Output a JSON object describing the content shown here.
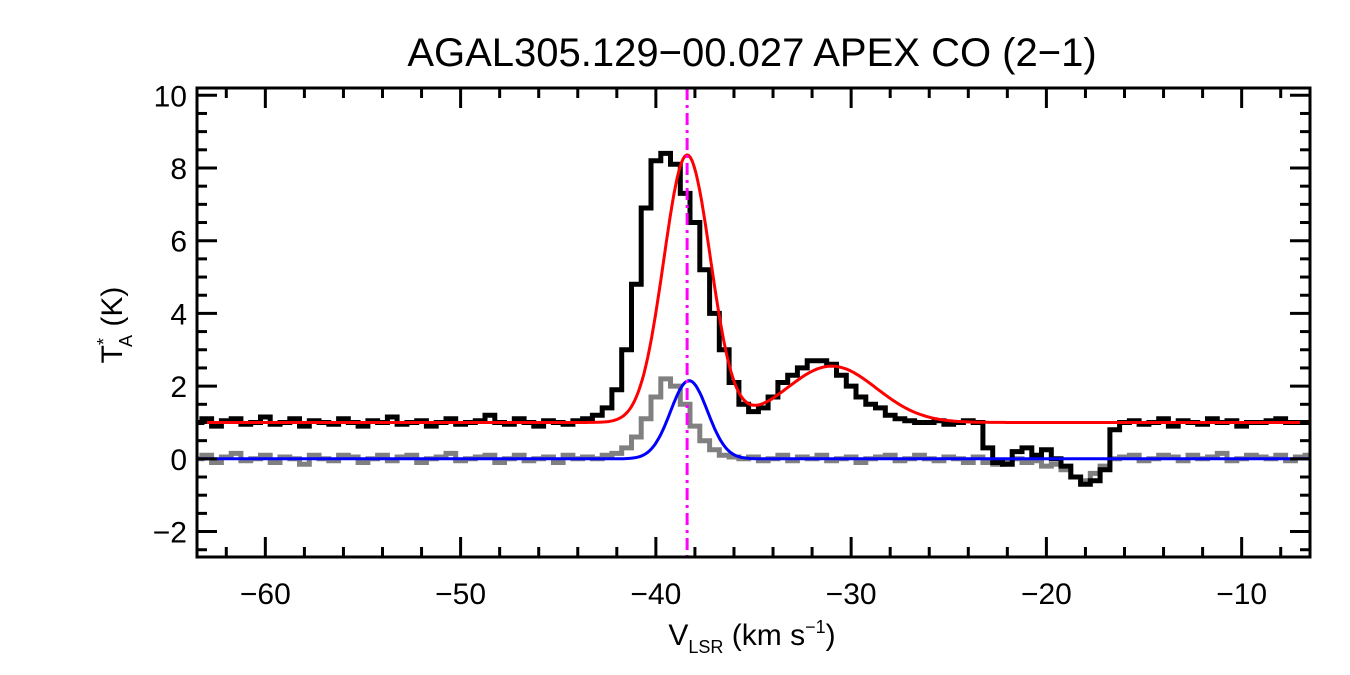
{
  "chart_data": {
    "type": "line",
    "title": "AGAL305.129−00.027  APEX CO (2−1)",
    "xlabel": {
      "main": "V",
      "sub": "LSR",
      "unit_prefix": " (km s",
      "sup": "−1",
      "unit_suffix": ")"
    },
    "ylabel": {
      "main": "T",
      "sup": "*",
      "sub": "A",
      "unit": " (K)"
    },
    "xlim": [
      -63.5,
      -6.5
    ],
    "ylim": [
      -2.7,
      10.2
    ],
    "x_ticks": [
      -60,
      -50,
      -40,
      -30,
      -20,
      -10
    ],
    "x_tick_labels": [
      "−60",
      "−50",
      "−40",
      "−30",
      "−20",
      "−10"
    ],
    "y_ticks": [
      -2,
      0,
      2,
      4,
      6,
      8,
      10
    ],
    "y_tick_labels": [
      "−2",
      "0",
      "2",
      "4",
      "6",
      "8",
      "10"
    ],
    "x_minor_step": 2,
    "y_minor_step": 0.5,
    "reference_line": {
      "x": -38.4,
      "color": "#ff00ff",
      "style": "dash-dot"
    },
    "series": [
      {
        "kind": "histogram",
        "color": "#000000",
        "x": [
          -63.5,
          -63,
          -62.5,
          -62,
          -61.5,
          -61,
          -60.5,
          -60,
          -59.5,
          -59,
          -58.5,
          -58,
          -57.5,
          -57,
          -56.5,
          -56,
          -55.5,
          -55,
          -54.5,
          -54,
          -53.5,
          -53,
          -52.5,
          -52,
          -51.5,
          -51,
          -50.5,
          -50,
          -49.5,
          -49,
          -48.5,
          -48,
          -47.5,
          -47,
          -46.5,
          -46,
          -45.5,
          -45,
          -44.5,
          -44,
          -43.5,
          -43,
          -42.5,
          -42,
          -41.5,
          -41,
          -40.5,
          -40,
          -39.5,
          -39,
          -38.5,
          -38,
          -37.5,
          -37,
          -36.5,
          -36,
          -35.5,
          -35,
          -34.5,
          -34,
          -33.5,
          -33,
          -32.5,
          -32,
          -31.5,
          -31,
          -30.5,
          -30,
          -29.5,
          -29,
          -28.5,
          -28,
          -27.5,
          -27,
          -26.5,
          -26,
          -25.5,
          -25,
          -24.5,
          -24,
          -23.5,
          -23,
          -22.5,
          -22,
          -21.5,
          -21,
          -20.5,
          -20,
          -19.5,
          -19,
          -18.5,
          -18,
          -17.5,
          -17,
          -16.5,
          -16,
          -15.5,
          -15,
          -14.5,
          -14,
          -13.5,
          -13,
          -12.5,
          -12,
          -11.5,
          -11,
          -10.5,
          -10,
          -9.5,
          -9,
          -8.5,
          -8,
          -7.5,
          -7,
          -6.5
        ],
        "y": [
          1.0,
          1.1,
          0.9,
          1.05,
          1.1,
          0.95,
          1.0,
          1.15,
          0.95,
          1.0,
          1.1,
          0.9,
          1.05,
          1.0,
          0.95,
          1.1,
          1.0,
          0.9,
          1.05,
          1.0,
          1.15,
          0.95,
          1.0,
          1.05,
          0.9,
          1.0,
          1.1,
          0.95,
          1.0,
          1.05,
          1.2,
          1.0,
          0.95,
          1.1,
          1.0,
          0.9,
          1.05,
          1.0,
          0.95,
          1.05,
          1.1,
          1.2,
          1.4,
          1.9,
          3.0,
          4.8,
          6.9,
          8.2,
          8.4,
          8.1,
          7.3,
          6.5,
          5.2,
          4.0,
          3.0,
          2.1,
          1.5,
          1.3,
          1.4,
          1.7,
          2.1,
          2.3,
          2.5,
          2.7,
          2.7,
          2.6,
          2.3,
          2.0,
          1.7,
          1.5,
          1.4,
          1.2,
          1.1,
          1.05,
          1.0,
          1.0,
          1.05,
          0.95,
          1.0,
          1.05,
          1.0,
          0.3,
          -0.1,
          -0.15,
          0.2,
          0.3,
          0.1,
          0.25,
          0.0,
          -0.2,
          -0.5,
          -0.7,
          -0.6,
          -0.3,
          0.8,
          1.0,
          1.05,
          0.95,
          1.0,
          1.1,
          0.9,
          1.05,
          1.0,
          0.95,
          1.1,
          1.0,
          1.05,
          0.9,
          1.0,
          1.0,
          1.05,
          1.1,
          1.0,
          1.0,
          1.0
        ]
      },
      {
        "kind": "histogram",
        "color": "#808080",
        "x": [
          -63.5,
          -63,
          -62.5,
          -62,
          -61.5,
          -61,
          -60.5,
          -60,
          -59.5,
          -59,
          -58.5,
          -58,
          -57.5,
          -57,
          -56.5,
          -56,
          -55.5,
          -55,
          -54.5,
          -54,
          -53.5,
          -53,
          -52.5,
          -52,
          -51.5,
          -51,
          -50.5,
          -50,
          -49.5,
          -49,
          -48.5,
          -48,
          -47.5,
          -47,
          -46.5,
          -46,
          -45.5,
          -45,
          -44.5,
          -44,
          -43.5,
          -43,
          -42.5,
          -42,
          -41.5,
          -41,
          -40.5,
          -40,
          -39.5,
          -39,
          -38.5,
          -38,
          -37.5,
          -37,
          -36.5,
          -36,
          -35.5,
          -35,
          -34.5,
          -34,
          -33.5,
          -33,
          -32.5,
          -32,
          -31.5,
          -31,
          -30.5,
          -30,
          -29.5,
          -29,
          -28.5,
          -28,
          -27.5,
          -27,
          -26.5,
          -26,
          -25.5,
          -25,
          -24.5,
          -24,
          -23.5,
          -23,
          -22.5,
          -22,
          -21.5,
          -21,
          -20.5,
          -20,
          -19.5,
          -19,
          -18.5,
          -18,
          -17.5,
          -17,
          -16.5,
          -16,
          -15.5,
          -15,
          -14.5,
          -14,
          -13.5,
          -13,
          -12.5,
          -12,
          -11.5,
          -11,
          -10.5,
          -10,
          -9.5,
          -9,
          -8.5,
          -8,
          -7.5,
          -7,
          -6.5
        ],
        "y": [
          0.0,
          0.1,
          -0.1,
          0.05,
          0.15,
          -0.05,
          0.0,
          0.1,
          -0.1,
          0.05,
          0.0,
          -0.15,
          0.1,
          0.0,
          -0.05,
          0.1,
          0.05,
          -0.1,
          0.0,
          0.1,
          -0.05,
          0.05,
          0.1,
          -0.1,
          0.0,
          0.05,
          0.15,
          -0.05,
          0.0,
          0.05,
          0.1,
          -0.1,
          0.0,
          0.1,
          -0.05,
          0.0,
          0.05,
          -0.1,
          0.1,
          0.0,
          0.05,
          0.0,
          0.1,
          0.15,
          0.3,
          0.6,
          1.1,
          1.7,
          2.2,
          2.0,
          1.5,
          0.9,
          0.5,
          0.25,
          0.1,
          0.05,
          0.0,
          0.05,
          -0.05,
          0.0,
          0.1,
          -0.05,
          0.05,
          0.0,
          0.1,
          -0.05,
          0.0,
          0.05,
          -0.1,
          0.0,
          0.05,
          0.1,
          -0.05,
          0.0,
          0.1,
          0.0,
          -0.05,
          0.05,
          0.0,
          -0.1,
          0.05,
          -0.1,
          -0.15,
          -0.1,
          0.0,
          -0.1,
          -0.05,
          -0.2,
          -0.15,
          -0.3,
          -0.5,
          -0.6,
          -0.4,
          -0.2,
          0.0,
          0.05,
          0.1,
          -0.05,
          0.0,
          0.1,
          0.05,
          -0.05,
          0.1,
          0.0,
          0.05,
          0.15,
          -0.05,
          0.0,
          0.1,
          0.05,
          0.0,
          0.1,
          -0.05,
          0.05,
          0.1
        ]
      },
      {
        "kind": "model",
        "color": "#ff0000",
        "baseline": 1.0,
        "components": [
          {
            "amplitude": 7.35,
            "center": -38.4,
            "sigma": 1.2
          },
          {
            "amplitude": 1.55,
            "center": -31.0,
            "sigma": 2.3
          }
        ]
      },
      {
        "kind": "model",
        "color": "#0000ff",
        "baseline": 0.0,
        "components": [
          {
            "amplitude": 2.15,
            "center": -38.3,
            "sigma": 0.95
          }
        ]
      }
    ]
  }
}
